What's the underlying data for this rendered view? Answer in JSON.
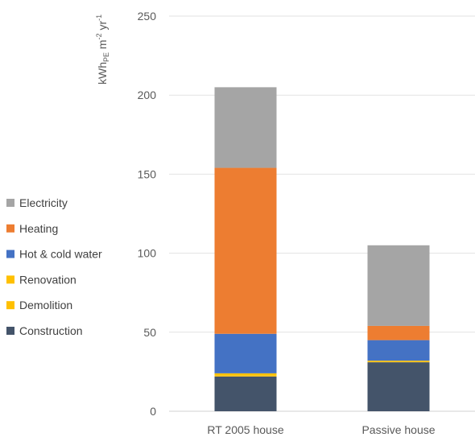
{
  "chart_data": {
    "type": "bar",
    "stacked": true,
    "categories": [
      "RT 2005 house",
      "Passive house"
    ],
    "series": [
      {
        "name": "Construction",
        "color": "#44546a",
        "values": [
          22,
          31
        ]
      },
      {
        "name": "Demolition",
        "color": "#ffc000",
        "values": [
          0.5,
          0.5
        ]
      },
      {
        "name": "Renovation",
        "color": "#ffc000",
        "values": [
          1.5,
          0.5
        ]
      },
      {
        "name": "Hot & cold water",
        "color": "#4472c4",
        "values": [
          25,
          13
        ]
      },
      {
        "name": "Heating",
        "color": "#ed7d31",
        "values": [
          105,
          9
        ]
      },
      {
        "name": "Electricity",
        "color": "#a5a5a5",
        "values": [
          51,
          51
        ]
      }
    ],
    "ylabel": {
      "base": "kWh",
      "sub": "PE",
      "mid": " m",
      "sup1": "-2",
      "mid2": " yr",
      "sup2": "-1"
    },
    "ylim": [
      0,
      250
    ],
    "yticks": [
      0,
      50,
      100,
      150,
      200,
      250
    ],
    "grid": true,
    "legend_position": "left"
  }
}
